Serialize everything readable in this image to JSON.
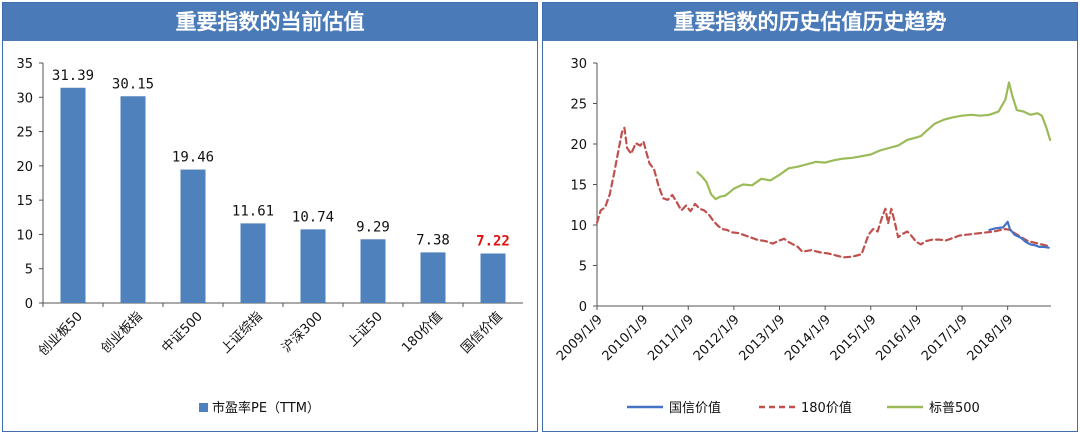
{
  "left_panel": {
    "title": "重要指数的当前估值"
  },
  "right_panel": {
    "title": "重要指数的历史估值历史趋势"
  },
  "chart_data": [
    {
      "type": "bar",
      "title": "重要指数的当前估值",
      "categories": [
        "创业板50",
        "创业板指",
        "中证500",
        "上证综指",
        "沪深300",
        "上证50",
        "180价值",
        "国信价值"
      ],
      "series": [
        {
          "name": "市盈率PE（TTM）",
          "values": [
            31.39,
            30.15,
            19.46,
            11.61,
            10.74,
            9.29,
            7.38,
            7.22
          ],
          "labels": [
            "31.39",
            "30.15",
            "19.46",
            "11.61",
            "10.74",
            "9.29",
            "7.38",
            "7.22"
          ]
        }
      ],
      "highlight_index": 7,
      "ylim": [
        0,
        35
      ],
      "yticks": [
        "0",
        "5",
        "10",
        "15",
        "20",
        "25",
        "30",
        "35"
      ],
      "grid": false,
      "legend": "bottom",
      "colors": {
        "bar": "#4f81bd",
        "highlight_label": "#e01010"
      }
    },
    {
      "type": "line",
      "title": "重要指数的历史估值历史趋势",
      "x_ticks": [
        "2009/1/9",
        "2010/1/9",
        "2011/1/9",
        "2012/1/9",
        "2013/1/9",
        "2014/1/9",
        "2015/1/9",
        "2016/1/9",
        "2017/1/9",
        "2018/1/9"
      ],
      "x_range": [
        2009.0,
        2018.95
      ],
      "ylim": [
        0,
        30
      ],
      "yticks": [
        "0",
        "5",
        "10",
        "15",
        "20",
        "25",
        "30"
      ],
      "grid": false,
      "legend": "bottom",
      "series": [
        {
          "name": "国信价值",
          "color": "#4472c4",
          "style": "solid",
          "points": [
            [
              2017.6,
              9.4
            ],
            [
              2017.75,
              9.6
            ],
            [
              2017.9,
              9.7
            ],
            [
              2018.0,
              10.4
            ],
            [
              2018.05,
              9.5
            ],
            [
              2018.15,
              8.8
            ],
            [
              2018.3,
              8.4
            ],
            [
              2018.4,
              7.9
            ],
            [
              2018.5,
              7.6
            ],
            [
              2018.6,
              7.5
            ],
            [
              2018.7,
              7.3
            ],
            [
              2018.8,
              7.3
            ],
            [
              2018.9,
              7.2
            ]
          ]
        },
        {
          "name": "180价值",
          "color": "#c0504d",
          "style": "dashed",
          "points": [
            [
              2009.0,
              10.3
            ],
            [
              2009.08,
              11.8
            ],
            [
              2009.18,
              12.2
            ],
            [
              2009.28,
              13.8
            ],
            [
              2009.38,
              16.5
            ],
            [
              2009.48,
              19.5
            ],
            [
              2009.55,
              21.5
            ],
            [
              2009.6,
              22.0
            ],
            [
              2009.66,
              19.5
            ],
            [
              2009.75,
              18.8
            ],
            [
              2009.85,
              20.1
            ],
            [
              2009.95,
              19.8
            ],
            [
              2010.02,
              20.3
            ],
            [
              2010.08,
              19.0
            ],
            [
              2010.15,
              17.6
            ],
            [
              2010.25,
              16.9
            ],
            [
              2010.35,
              14.8
            ],
            [
              2010.45,
              13.3
            ],
            [
              2010.55,
              13.1
            ],
            [
              2010.65,
              13.7
            ],
            [
              2010.75,
              12.8
            ],
            [
              2010.85,
              11.8
            ],
            [
              2010.95,
              12.4
            ],
            [
              2011.05,
              11.7
            ],
            [
              2011.15,
              12.6
            ],
            [
              2011.25,
              12.0
            ],
            [
              2011.35,
              11.8
            ],
            [
              2011.45,
              11.3
            ],
            [
              2011.55,
              10.5
            ],
            [
              2011.65,
              9.9
            ],
            [
              2011.75,
              9.5
            ],
            [
              2011.85,
              9.4
            ],
            [
              2011.95,
              9.1
            ],
            [
              2012.1,
              9.0
            ],
            [
              2012.3,
              8.6
            ],
            [
              2012.5,
              8.2
            ],
            [
              2012.7,
              8.0
            ],
            [
              2012.85,
              7.7
            ],
            [
              2013.0,
              8.1
            ],
            [
              2013.1,
              8.3
            ],
            [
              2013.2,
              7.9
            ],
            [
              2013.4,
              7.3
            ],
            [
              2013.5,
              6.7
            ],
            [
              2013.7,
              6.9
            ],
            [
              2013.9,
              6.6
            ],
            [
              2014.05,
              6.5
            ],
            [
              2014.2,
              6.3
            ],
            [
              2014.4,
              6.0
            ],
            [
              2014.6,
              6.1
            ],
            [
              2014.8,
              6.4
            ],
            [
              2014.95,
              8.8
            ],
            [
              2015.05,
              9.5
            ],
            [
              2015.15,
              9.2
            ],
            [
              2015.25,
              11.0
            ],
            [
              2015.32,
              12.0
            ],
            [
              2015.38,
              10.2
            ],
            [
              2015.45,
              12.0
            ],
            [
              2015.52,
              10.5
            ],
            [
              2015.6,
              8.5
            ],
            [
              2015.7,
              8.9
            ],
            [
              2015.8,
              9.2
            ],
            [
              2015.9,
              8.6
            ],
            [
              2016.0,
              7.9
            ],
            [
              2016.1,
              7.6
            ],
            [
              2016.2,
              8.0
            ],
            [
              2016.35,
              8.2
            ],
            [
              2016.5,
              8.2
            ],
            [
              2016.65,
              8.1
            ],
            [
              2016.8,
              8.4
            ],
            [
              2016.95,
              8.7
            ],
            [
              2017.1,
              8.8
            ],
            [
              2017.25,
              8.9
            ],
            [
              2017.4,
              9.0
            ],
            [
              2017.55,
              9.1
            ],
            [
              2017.7,
              9.2
            ],
            [
              2017.85,
              9.4
            ],
            [
              2017.95,
              9.5
            ],
            [
              2018.05,
              9.4
            ],
            [
              2018.15,
              9.0
            ],
            [
              2018.3,
              8.5
            ],
            [
              2018.45,
              8.0
            ],
            [
              2018.6,
              7.8
            ],
            [
              2018.75,
              7.6
            ],
            [
              2018.9,
              7.4
            ]
          ]
        },
        {
          "name": "标普500",
          "color": "#9bbb59",
          "style": "solid",
          "points": [
            [
              2011.2,
              16.5
            ],
            [
              2011.3,
              16.0
            ],
            [
              2011.4,
              15.3
            ],
            [
              2011.5,
              13.8
            ],
            [
              2011.6,
              13.2
            ],
            [
              2011.7,
              13.5
            ],
            [
              2011.8,
              13.6
            ],
            [
              2011.9,
              14.0
            ],
            [
              2012.0,
              14.5
            ],
            [
              2012.2,
              15.0
            ],
            [
              2012.4,
              14.9
            ],
            [
              2012.6,
              15.7
            ],
            [
              2012.8,
              15.5
            ],
            [
              2013.0,
              16.2
            ],
            [
              2013.2,
              17.0
            ],
            [
              2013.4,
              17.2
            ],
            [
              2013.6,
              17.5
            ],
            [
              2013.8,
              17.8
            ],
            [
              2014.0,
              17.7
            ],
            [
              2014.2,
              18.0
            ],
            [
              2014.4,
              18.2
            ],
            [
              2014.6,
              18.3
            ],
            [
              2014.8,
              18.5
            ],
            [
              2015.0,
              18.7
            ],
            [
              2015.2,
              19.2
            ],
            [
              2015.4,
              19.5
            ],
            [
              2015.6,
              19.8
            ],
            [
              2015.8,
              20.5
            ],
            [
              2016.0,
              20.8
            ],
            [
              2016.1,
              21.0
            ],
            [
              2016.2,
              21.5
            ],
            [
              2016.4,
              22.5
            ],
            [
              2016.6,
              23.0
            ],
            [
              2016.8,
              23.3
            ],
            [
              2017.0,
              23.5
            ],
            [
              2017.2,
              23.6
            ],
            [
              2017.4,
              23.5
            ],
            [
              2017.6,
              23.6
            ],
            [
              2017.8,
              24.0
            ],
            [
              2017.95,
              25.5
            ],
            [
              2018.03,
              27.6
            ],
            [
              2018.1,
              26.0
            ],
            [
              2018.2,
              24.2
            ],
            [
              2018.35,
              24.0
            ],
            [
              2018.5,
              23.6
            ],
            [
              2018.65,
              23.8
            ],
            [
              2018.75,
              23.5
            ],
            [
              2018.85,
              22.0
            ],
            [
              2018.93,
              20.5
            ]
          ]
        }
      ]
    }
  ]
}
